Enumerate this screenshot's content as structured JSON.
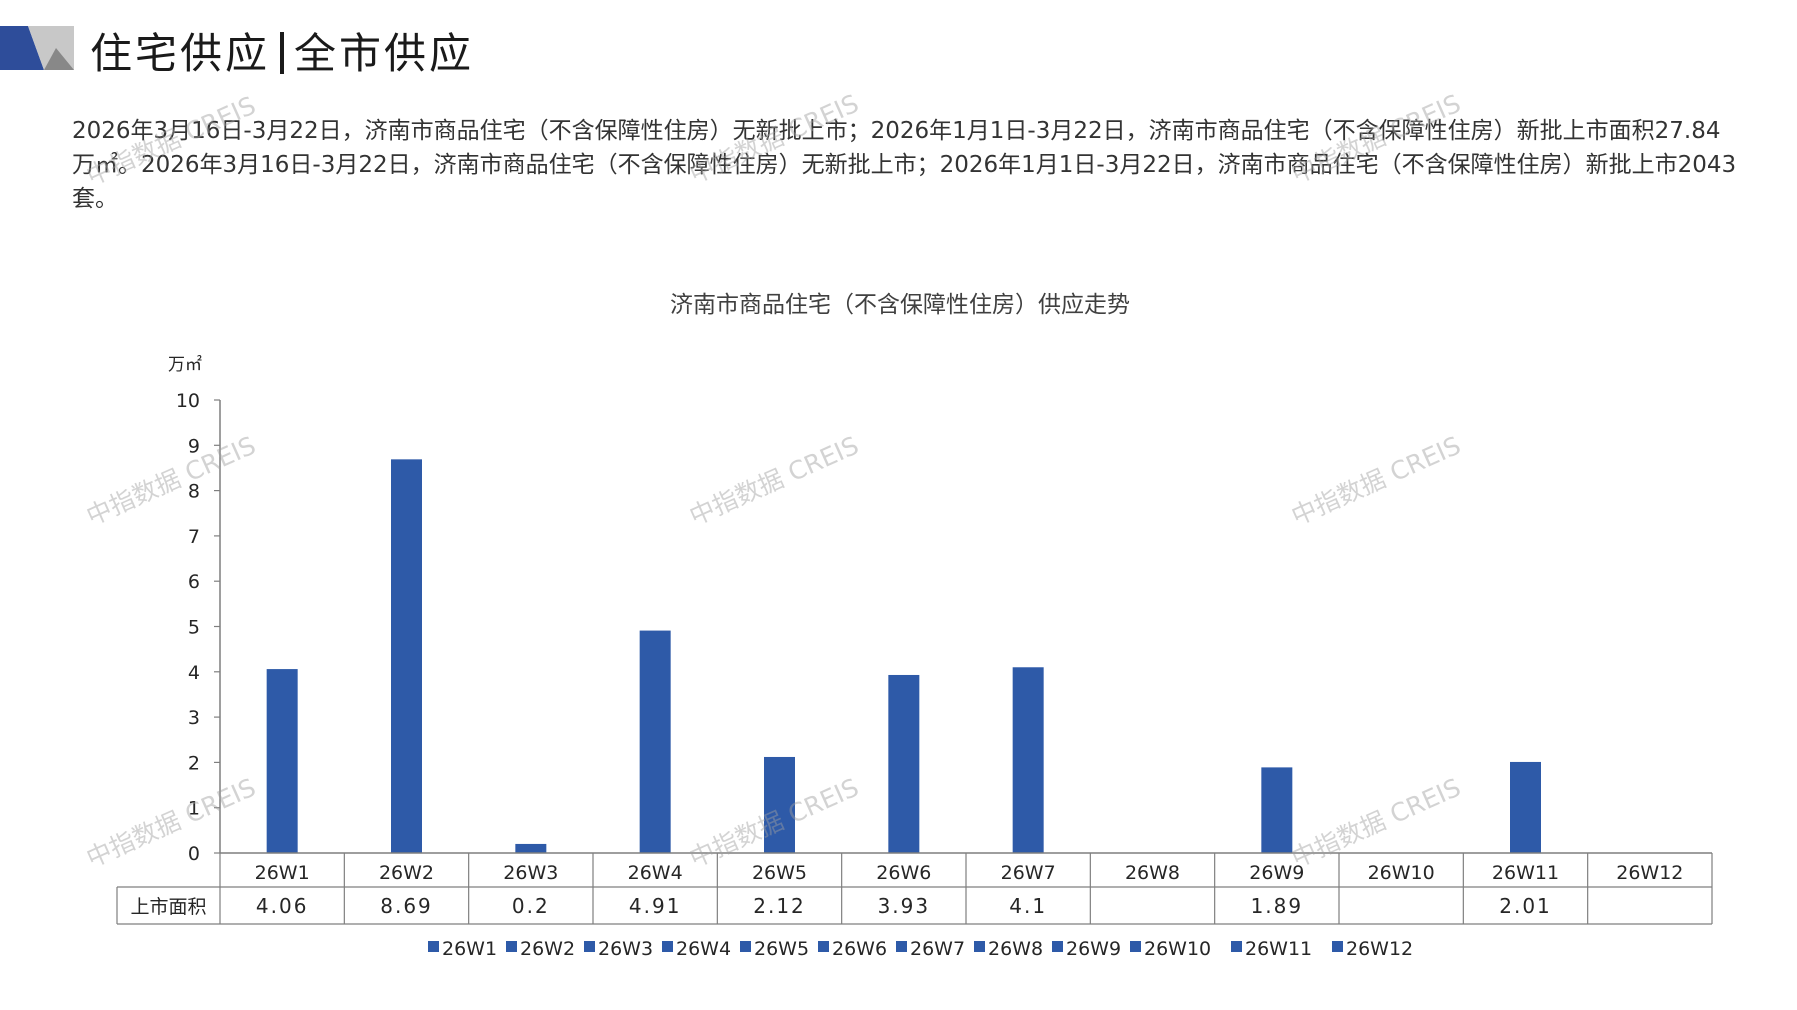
{
  "header": {
    "title_left": "住宅供应",
    "title_right": "全市供应"
  },
  "summary": "2026年3月16日-3月22日，济南市商品住宅（不含保障性住房）无新批上市；2026年1月1日-3月22日，济南市商品住宅（不含保障性住房）新批上市面积27.84万㎡。2026年3月16日-3月22日，济南市商品住宅（不含保障性住房）无新批上市；2026年1月1日-3月22日，济南市商品住宅（不含保障性住房）新批上市2043套。",
  "watermark": "中指数据 CREIS",
  "colors": {
    "bar": "#2e5aa8",
    "logo_dark": "#2e4d9a",
    "logo_light": "#c8c8c8"
  },
  "chart_data": {
    "type": "bar",
    "title": "济南市商品住宅（不含保障性住房）供应走势",
    "yunit": "万㎡",
    "ylim": [
      0,
      10
    ],
    "yticks": [
      0,
      1,
      2,
      3,
      4,
      5,
      6,
      7,
      8,
      9,
      10
    ],
    "categories": [
      "26W1",
      "26W2",
      "26W3",
      "26W4",
      "26W5",
      "26W6",
      "26W7",
      "26W8",
      "26W9",
      "26W10",
      "26W11",
      "26W12"
    ],
    "series": [
      {
        "name": "上市面积",
        "values": [
          4.06,
          8.69,
          0.2,
          4.91,
          2.12,
          3.93,
          4.1,
          null,
          1.89,
          null,
          2.01,
          null
        ],
        "labels": [
          "4.06",
          "8.69",
          "0.2",
          "4.91",
          "2.12",
          "3.93",
          "4.1",
          "",
          "1.89",
          "",
          "2.01",
          ""
        ]
      }
    ],
    "legend": {
      "position": "bottom",
      "entries": [
        "26W1",
        "26W2",
        "26W3",
        "26W4",
        "26W5",
        "26W6",
        "26W7",
        "26W8",
        "26W9",
        "26W10",
        "26W11",
        "26W12"
      ]
    },
    "data_table": true,
    "grid": false
  }
}
